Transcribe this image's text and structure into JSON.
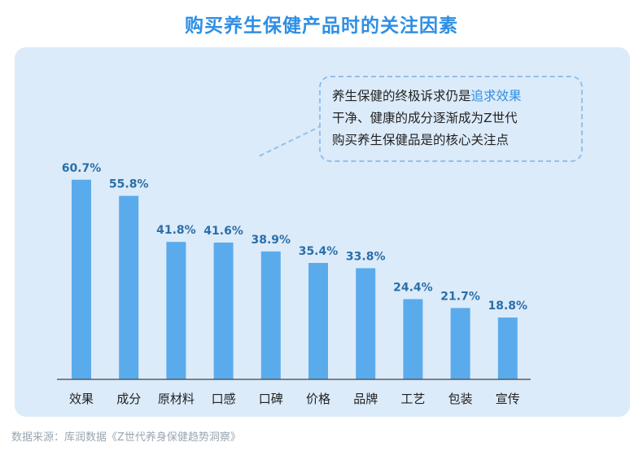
{
  "title": "购买养生保健产品时的关注因素",
  "callout": {
    "line1_prefix": "养生保健的终极诉求仍是",
    "line1_highlight": "追求效果",
    "line2": "干净、健康的成分逐渐成为Z世代",
    "line3": "购买养生保健品是的核心关注点"
  },
  "source": "数据来源：库润数据《Z世代养身保健趋势洞察》",
  "colors": {
    "bar": "#5aabec",
    "label": "#2b6fa8",
    "title": "#2e8fe4",
    "panel": "#dcebfa"
  },
  "chart_data": {
    "type": "bar",
    "title": "购买养生保健产品时的关注因素",
    "categories": [
      "效果",
      "成分",
      "原材料",
      "口感",
      "口碑",
      "价格",
      "品牌",
      "工艺",
      "包装",
      "宣传"
    ],
    "values": [
      60.7,
      55.8,
      41.8,
      41.6,
      38.9,
      35.4,
      33.8,
      24.4,
      21.7,
      18.8
    ],
    "value_labels": [
      "60.7%",
      "55.8%",
      "41.8%",
      "41.6%",
      "38.9%",
      "35.4%",
      "33.8%",
      "24.4%",
      "21.7%",
      "18.8%"
    ],
    "unit": "%",
    "ylim": [
      0,
      100
    ],
    "grid": false,
    "legend": "none"
  }
}
